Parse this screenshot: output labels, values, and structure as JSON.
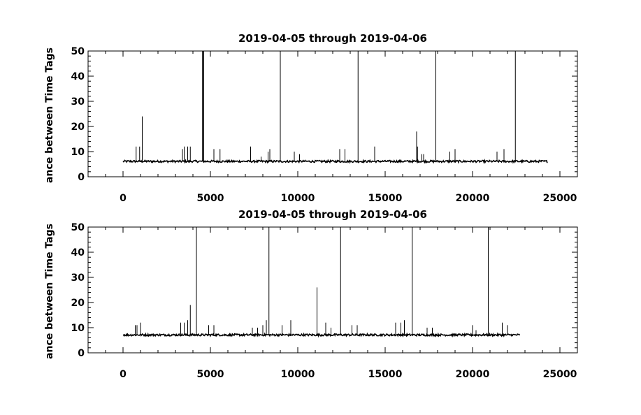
{
  "chart_data": [
    {
      "type": "line",
      "title": "2019-04-05 through 2019-04-06",
      "ylabel": "ance between Time Tags",
      "xlabel": "",
      "xlim": [
        -2000,
        26000
      ],
      "ylim": [
        0,
        50
      ],
      "xticks": [
        0,
        5000,
        10000,
        15000,
        20000,
        25000
      ],
      "yticks": [
        0,
        10,
        20,
        30,
        40,
        50
      ],
      "grid": false,
      "series": [
        {
          "baseline": 6,
          "x_start": 0,
          "x_end": 24300,
          "spikes": [
            {
              "x": 750,
              "y": 12
            },
            {
              "x": 950,
              "y": 12
            },
            {
              "x": 1100,
              "y": 24
            },
            {
              "x": 3400,
              "y": 11
            },
            {
              "x": 3500,
              "y": 12
            },
            {
              "x": 3700,
              "y": 12
            },
            {
              "x": 3850,
              "y": 12
            },
            {
              "x": 4550,
              "y": 50
            },
            {
              "x": 4580,
              "y": 50
            },
            {
              "x": 4610,
              "y": 50
            },
            {
              "x": 5200,
              "y": 11
            },
            {
              "x": 5550,
              "y": 11
            },
            {
              "x": 7300,
              "y": 12
            },
            {
              "x": 7900,
              "y": 8
            },
            {
              "x": 8300,
              "y": 10
            },
            {
              "x": 8400,
              "y": 11
            },
            {
              "x": 9000,
              "y": 50
            },
            {
              "x": 9800,
              "y": 10
            },
            {
              "x": 10100,
              "y": 9
            },
            {
              "x": 12400,
              "y": 11
            },
            {
              "x": 12700,
              "y": 11
            },
            {
              "x": 13450,
              "y": 50
            },
            {
              "x": 14400,
              "y": 12
            },
            {
              "x": 16800,
              "y": 18
            },
            {
              "x": 16850,
              "y": 12
            },
            {
              "x": 17100,
              "y": 9
            },
            {
              "x": 17200,
              "y": 9
            },
            {
              "x": 17900,
              "y": 50
            },
            {
              "x": 18700,
              "y": 10
            },
            {
              "x": 19000,
              "y": 11
            },
            {
              "x": 21400,
              "y": 10
            },
            {
              "x": 21800,
              "y": 11
            },
            {
              "x": 22450,
              "y": 50
            }
          ]
        }
      ]
    },
    {
      "type": "line",
      "title": "2019-04-05 through 2019-04-06",
      "ylabel": "ance between Time Tags",
      "xlabel": "",
      "xlim": [
        -2000,
        26000
      ],
      "ylim": [
        0,
        50
      ],
      "xticks": [
        0,
        5000,
        10000,
        15000,
        20000,
        25000
      ],
      "yticks": [
        0,
        10,
        20,
        30,
        40,
        50
      ],
      "grid": false,
      "series": [
        {
          "baseline": 7,
          "x_start": 0,
          "x_end": 22700,
          "spikes": [
            {
              "x": 700,
              "y": 11
            },
            {
              "x": 800,
              "y": 11
            },
            {
              "x": 1000,
              "y": 12
            },
            {
              "x": 3300,
              "y": 12
            },
            {
              "x": 3500,
              "y": 12
            },
            {
              "x": 3700,
              "y": 13
            },
            {
              "x": 3850,
              "y": 19
            },
            {
              "x": 4200,
              "y": 50
            },
            {
              "x": 4900,
              "y": 11
            },
            {
              "x": 5200,
              "y": 11
            },
            {
              "x": 7400,
              "y": 10
            },
            {
              "x": 7700,
              "y": 10
            },
            {
              "x": 8000,
              "y": 11
            },
            {
              "x": 8200,
              "y": 13
            },
            {
              "x": 8350,
              "y": 50
            },
            {
              "x": 9100,
              "y": 11
            },
            {
              "x": 9600,
              "y": 13
            },
            {
              "x": 11100,
              "y": 26
            },
            {
              "x": 11600,
              "y": 12
            },
            {
              "x": 11900,
              "y": 10
            },
            {
              "x": 12450,
              "y": 50
            },
            {
              "x": 13100,
              "y": 11
            },
            {
              "x": 13400,
              "y": 11
            },
            {
              "x": 15600,
              "y": 12
            },
            {
              "x": 15900,
              "y": 12
            },
            {
              "x": 16100,
              "y": 13
            },
            {
              "x": 16550,
              "y": 50
            },
            {
              "x": 17400,
              "y": 10
            },
            {
              "x": 17700,
              "y": 10
            },
            {
              "x": 20000,
              "y": 11
            },
            {
              "x": 20200,
              "y": 9
            },
            {
              "x": 20900,
              "y": 50
            },
            {
              "x": 21700,
              "y": 12
            },
            {
              "x": 22000,
              "y": 11
            }
          ]
        }
      ]
    }
  ]
}
